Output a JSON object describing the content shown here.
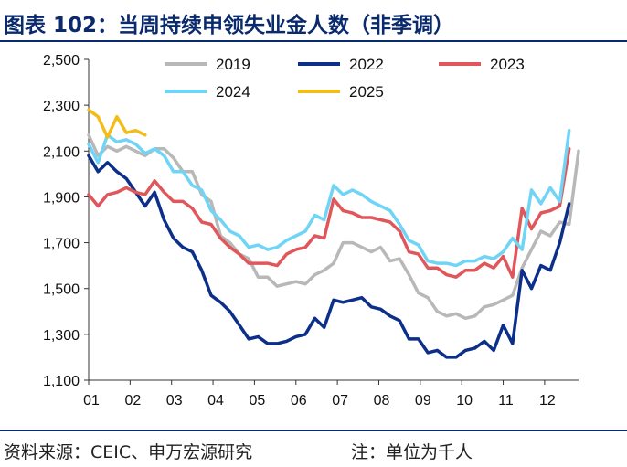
{
  "title": "图表 102：当周持续申领失业金人数（非季调）",
  "source": "资料来源：CEIC、申万宏源研究",
  "note": "注：单位为千人",
  "colors": {
    "title": "#0a2a6e",
    "s2019": "#b8b8b8",
    "s2022": "#0c2f8a",
    "s2023": "#e0575b",
    "s2024": "#6fd4f5",
    "s2025": "#f2bd1b"
  },
  "chart_data": {
    "type": "line",
    "ylim": [
      1100,
      2500
    ],
    "yticks": [
      1100,
      1300,
      1500,
      1700,
      1900,
      2100,
      2300,
      2500
    ],
    "ytick_labels": [
      "1,100",
      "1,300",
      "1,500",
      "1,700",
      "1,900",
      "2,100",
      "2,300",
      "2,500"
    ],
    "xlim": [
      1,
      53
    ],
    "xtick_labels": [
      "01",
      "02",
      "03",
      "04",
      "05",
      "06",
      "07",
      "08",
      "09",
      "10",
      "11",
      "12"
    ],
    "xtick_weeks": [
      1,
      5.4,
      9.8,
      14.2,
      18.6,
      23,
      27.4,
      31.8,
      36.2,
      40.6,
      45,
      49.4
    ],
    "xlabel": "",
    "ylabel": "",
    "legend": [
      "2019",
      "2022",
      "2023",
      "2024",
      "2025"
    ],
    "series": [
      {
        "name": "2019",
        "color": "#b8b8b8",
        "values": [
          2170,
          2080,
          2120,
          2100,
          2120,
          2100,
          2080,
          2110,
          2110,
          2070,
          2010,
          2010,
          1910,
          1880,
          1730,
          1700,
          1650,
          1630,
          1550,
          1550,
          1510,
          1520,
          1530,
          1520,
          1560,
          1580,
          1610,
          1700,
          1700,
          1680,
          1660,
          1680,
          1620,
          1630,
          1560,
          1480,
          1460,
          1400,
          1380,
          1390,
          1370,
          1380,
          1420,
          1430,
          1450,
          1470,
          1590,
          1670,
          1750,
          1730,
          1790,
          1780,
          2100
        ]
      },
      {
        "name": "2022",
        "color": "#0c2f8a",
        "values": [
          2080,
          2010,
          2050,
          2010,
          1980,
          1920,
          1860,
          1920,
          1800,
          1720,
          1680,
          1660,
          1580,
          1470,
          1440,
          1400,
          1340,
          1280,
          1290,
          1260,
          1260,
          1270,
          1290,
          1300,
          1370,
          1330,
          1450,
          1440,
          1450,
          1460,
          1420,
          1410,
          1380,
          1360,
          1280,
          1280,
          1220,
          1230,
          1200,
          1200,
          1230,
          1240,
          1270,
          1230,
          1340,
          1260,
          1580,
          1500,
          1600,
          1580,
          1700,
          1870
        ]
      },
      {
        "name": "2023",
        "color": "#e0575b",
        "values": [
          1910,
          1860,
          1910,
          1920,
          1940,
          1920,
          1910,
          1970,
          1920,
          1880,
          1880,
          1850,
          1790,
          1780,
          1720,
          1680,
          1650,
          1610,
          1610,
          1610,
          1600,
          1650,
          1670,
          1680,
          1730,
          1720,
          1890,
          1840,
          1830,
          1810,
          1810,
          1800,
          1790,
          1750,
          1660,
          1650,
          1590,
          1590,
          1560,
          1550,
          1580,
          1580,
          1610,
          1590,
          1640,
          1550,
          1850,
          1760,
          1830,
          1840,
          1860,
          2110
        ]
      },
      {
        "name": "2024",
        "color": "#6fd4f5",
        "values": [
          2130,
          2050,
          2170,
          2140,
          2150,
          2130,
          2090,
          2110,
          2080,
          2010,
          2010,
          1950,
          1930,
          1840,
          1800,
          1750,
          1730,
          1680,
          1690,
          1670,
          1680,
          1710,
          1730,
          1750,
          1820,
          1800,
          1950,
          1910,
          1930,
          1910,
          1880,
          1860,
          1840,
          1780,
          1710,
          1690,
          1620,
          1610,
          1610,
          1600,
          1620,
          1620,
          1640,
          1630,
          1660,
          1720,
          1670,
          1930,
          1870,
          1940,
          1880,
          2190
        ]
      },
      {
        "name": "2025",
        "color": "#f2bd1b",
        "values": [
          2280,
          2250,
          2160,
          2250,
          2180,
          2190,
          2170
        ]
      }
    ]
  }
}
